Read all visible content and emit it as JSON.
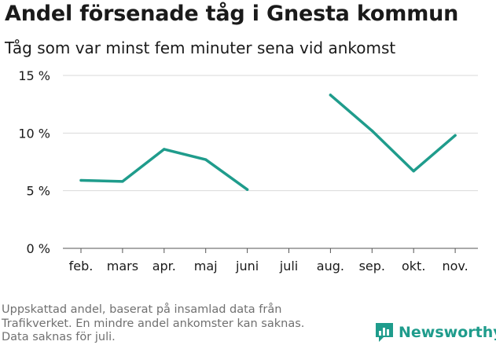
{
  "title": "Andel försenade tåg i Gnesta kommun",
  "subtitle": "Tåg som var minst fem minuter sena vid ankomst",
  "footnote": {
    "lines": [
      "Uppskattad andel, baserat på insamlad data från",
      "Trafikverket. En mindre andel ankomster kan saknas.",
      "Data saknas för juli."
    ]
  },
  "brand": {
    "name": "Newsworthy",
    "icon": "newsworthy-logo-icon",
    "color": "#1f9c8c"
  },
  "chart_data": {
    "type": "line",
    "title": "Andel försenade tåg i Gnesta kommun",
    "subtitle": "Tåg som var minst fem minuter sena vid ankomst",
    "categories": [
      "feb.",
      "mars",
      "apr.",
      "maj",
      "juni",
      "juli",
      "aug.",
      "sep.",
      "okt.",
      "nov."
    ],
    "series": [
      {
        "values": [
          5.9,
          5.8,
          8.6,
          7.7,
          5.1,
          null,
          13.3,
          10.2,
          6.7,
          9.8
        ],
        "color": "#1f9c8c"
      }
    ],
    "yticks": [
      0,
      5,
      10,
      15
    ],
    "ytick_labels": [
      "0 %",
      "5 %",
      "10 %",
      "15 %"
    ],
    "ylim": [
      0,
      15
    ],
    "grid": true,
    "xlabel": "",
    "ylabel": ""
  }
}
